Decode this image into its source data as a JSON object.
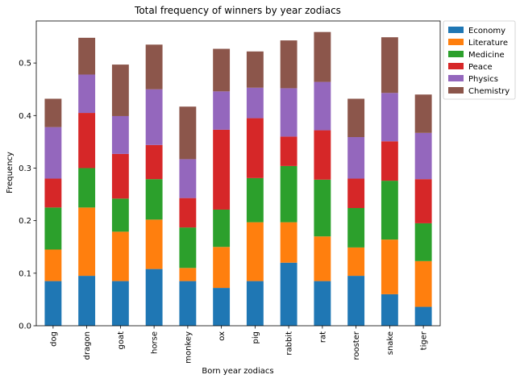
{
  "chart_data": {
    "type": "bar",
    "stacked": true,
    "title": "Total frequency of winners by year zodiacs",
    "xlabel": "Born year zodiacs",
    "ylabel": "Frequency",
    "ylim": [
      0,
      0.58
    ],
    "yticks": [
      0.0,
      0.1,
      0.2,
      0.3,
      0.4,
      0.5
    ],
    "ytick_labels": [
      "0.0",
      "0.1",
      "0.2",
      "0.3",
      "0.4",
      "0.5"
    ],
    "grid": false,
    "legend_placement": "top-right, outside plot",
    "categories": [
      "dog",
      "dragon",
      "goat",
      "horse",
      "monkey",
      "ox",
      "pig",
      "rabbit",
      "rat",
      "rooster",
      "snake",
      "tiger"
    ],
    "series": [
      {
        "name": "Economy",
        "color": "#1f77b4",
        "values": [
          0.085,
          0.095,
          0.085,
          0.108,
          0.085,
          0.072,
          0.085,
          0.12,
          0.085,
          0.095,
          0.06,
          0.036
        ]
      },
      {
        "name": "Literature",
        "color": "#ff7f0e",
        "values": [
          0.06,
          0.13,
          0.094,
          0.094,
          0.025,
          0.078,
          0.112,
          0.077,
          0.085,
          0.054,
          0.104,
          0.087
        ]
      },
      {
        "name": "Medicine",
        "color": "#2ca02c",
        "values": [
          0.08,
          0.075,
          0.063,
          0.077,
          0.077,
          0.071,
          0.084,
          0.107,
          0.108,
          0.075,
          0.112,
          0.072
        ]
      },
      {
        "name": "Peace",
        "color": "#d62728",
        "values": [
          0.055,
          0.105,
          0.085,
          0.065,
          0.056,
          0.152,
          0.114,
          0.056,
          0.094,
          0.056,
          0.075,
          0.084
        ]
      },
      {
        "name": "Physics",
        "color": "#9467bd",
        "values": [
          0.098,
          0.073,
          0.072,
          0.106,
          0.074,
          0.073,
          0.058,
          0.092,
          0.092,
          0.079,
          0.092,
          0.088
        ]
      },
      {
        "name": "Chemistry",
        "color": "#8c564b",
        "values": [
          0.054,
          0.07,
          0.098,
          0.085,
          0.1,
          0.081,
          0.069,
          0.091,
          0.095,
          0.073,
          0.106,
          0.073
        ]
      }
    ]
  }
}
